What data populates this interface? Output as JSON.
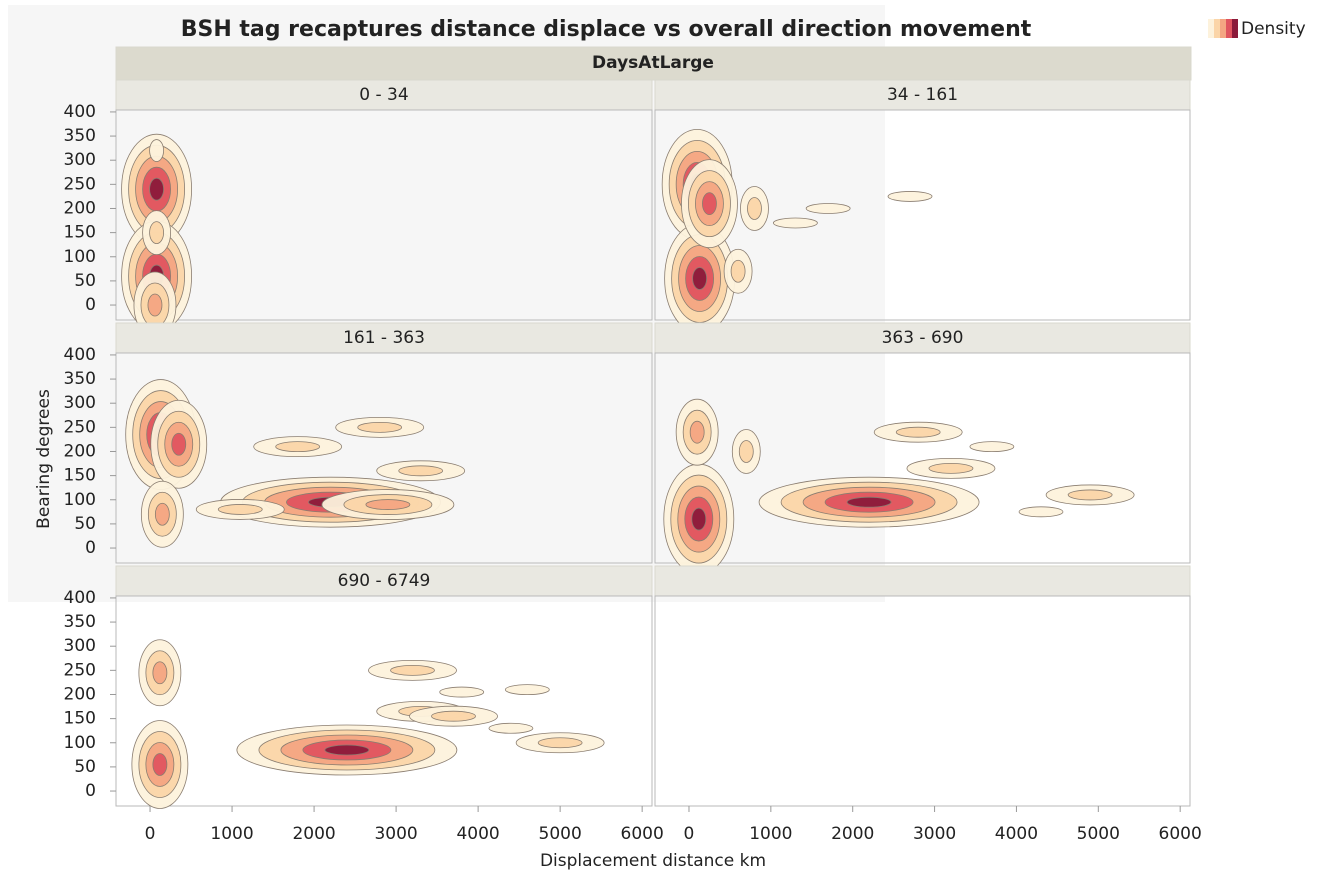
{
  "chart_data": {
    "type": "contour",
    "title": "BSH tag recaptures distance displace vs overall direction movement",
    "facet_label": "DaysAtLarge",
    "xlabel": "Displacement distance km",
    "ylabel": "Bearing degrees",
    "legend": {
      "title": "Density",
      "colors": [
        "#fdf2dc",
        "#fbd5a8",
        "#f4a582",
        "#e0545f",
        "#8b1a3a"
      ]
    },
    "xlim": [
      -415,
      6120
    ],
    "xticks": [
      0,
      1000,
      2000,
      3000,
      4000,
      5000,
      6000
    ],
    "ylim": [
      -31,
      404
    ],
    "yticks": [
      0,
      50,
      100,
      150,
      200,
      250,
      300,
      350,
      400
    ],
    "panels": [
      {
        "label": "0 - 34",
        "x": [
          80,
          80,
          60,
          80,
          80
        ],
        "y": [
          240,
          60,
          0,
          150,
          320
        ],
        "density": [
          5,
          5,
          3,
          2,
          1
        ]
      },
      {
        "label": "34 - 161",
        "x": [
          100,
          130,
          250,
          600,
          800,
          1700,
          2700,
          1300
        ],
        "y": [
          250,
          55,
          210,
          70,
          200,
          200,
          225,
          170
        ],
        "density": [
          5,
          5,
          4,
          2,
          2,
          1,
          1,
          1
        ]
      },
      {
        "label": "161 - 363",
        "x": [
          130,
          350,
          150,
          2200,
          2900,
          1800,
          2800,
          3300,
          1100
        ],
        "y": [
          235,
          215,
          70,
          95,
          90,
          210,
          250,
          160,
          80
        ],
        "density": [
          5,
          4,
          3,
          5,
          3,
          2,
          2,
          2,
          2
        ]
      },
      {
        "label": "363 - 690",
        "x": [
          120,
          100,
          2200,
          2800,
          3200,
          4900,
          3700,
          4300,
          700
        ],
        "y": [
          60,
          240,
          95,
          240,
          165,
          110,
          210,
          75,
          200
        ],
        "density": [
          5,
          3,
          5,
          2,
          2,
          2,
          1,
          1,
          2
        ]
      },
      {
        "label": "690 - 6749",
        "x": [
          120,
          120,
          2400,
          3300,
          3200,
          5000,
          3800,
          4600,
          4400,
          3700
        ],
        "y": [
          55,
          245,
          85,
          165,
          250,
          100,
          205,
          210,
          130,
          155
        ],
        "density": [
          4,
          3,
          5,
          2,
          2,
          2,
          1,
          1,
          1,
          2
        ]
      }
    ]
  }
}
